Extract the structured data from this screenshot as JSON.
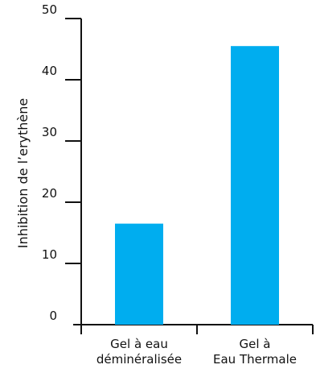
{
  "chart_data": {
    "type": "bar",
    "categories": [
      [
        "Gel à eau",
        "déminéralisée"
      ],
      [
        "Gel à",
        "Eau Thermale"
      ]
    ],
    "values": [
      16.5,
      45.5
    ],
    "ylabel": "Inhibition de l’erythène",
    "xlabel": "",
    "ylim": [
      0,
      50
    ],
    "yticks": [
      0,
      10,
      20,
      30,
      40,
      50
    ],
    "grid": false,
    "bar_color": "#00adef",
    "axis_color": "#111111"
  }
}
